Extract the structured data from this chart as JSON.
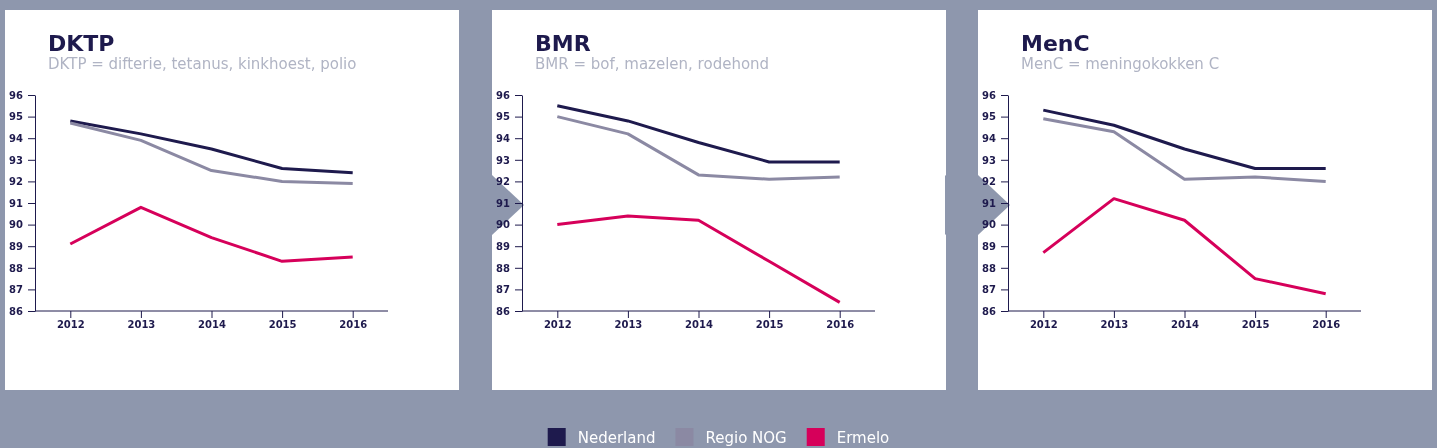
{
  "chart_data": [
    {
      "type": "line",
      "title": "DKTP",
      "subtitle": "DKTP = difterie, tetanus, kinkhoest, polio",
      "categories": [
        "2012",
        "2013",
        "2014",
        "2015",
        "2016"
      ],
      "ylim": [
        86,
        96
      ],
      "yticks": [
        86,
        87,
        88,
        89,
        90,
        91,
        92,
        93,
        94,
        95,
        96
      ],
      "grid": false,
      "legend": "bottom",
      "marker": "none",
      "series": [
        {
          "name": "Nederland",
          "color": "#1e1a4d",
          "values": [
            94.8,
            94.2,
            93.5,
            92.6,
            92.4
          ]
        },
        {
          "name": "Regio NOG",
          "color": "#8b89a3",
          "values": [
            94.7,
            93.9,
            92.5,
            92.0,
            91.9
          ]
        },
        {
          "name": "Ermelo",
          "color": "#d6005a",
          "values": [
            89.1,
            90.8,
            89.4,
            88.3,
            88.5
          ]
        }
      ]
    },
    {
      "type": "line",
      "title": "BMR",
      "subtitle": "BMR = bof, mazelen, rodehond",
      "categories": [
        "2012",
        "2013",
        "2014",
        "2015",
        "2016"
      ],
      "ylim": [
        86,
        96
      ],
      "yticks": [
        86,
        87,
        88,
        89,
        90,
        91,
        92,
        93,
        94,
        95,
        96
      ],
      "grid": false,
      "marker": "none",
      "series": [
        {
          "color": "#1e1a4d",
          "values": [
            95.5,
            94.8,
            93.8,
            92.9,
            92.9
          ]
        },
        {
          "color": "#8b89a3",
          "values": [
            95.0,
            94.2,
            92.3,
            92.1,
            92.2
          ]
        },
        {
          "color": "#d6005a",
          "values": [
            90.0,
            90.4,
            90.2,
            88.3,
            86.4
          ]
        }
      ]
    },
    {
      "type": "line",
      "title": "MenC",
      "subtitle": "MenC = meningokokken C",
      "categories": [
        "2012",
        "2013",
        "2014",
        "2015",
        "2016"
      ],
      "ylim": [
        86,
        96
      ],
      "yticks": [
        86,
        87,
        88,
        89,
        90,
        91,
        92,
        93,
        94,
        95,
        96
      ],
      "grid": false,
      "marker": "none",
      "series": [
        {
          "color": "#1e1a4d",
          "values": [
            95.3,
            94.6,
            93.5,
            92.6,
            92.6
          ]
        },
        {
          "color": "#8b89a3",
          "values": [
            94.9,
            94.3,
            92.1,
            92.2,
            92.0
          ]
        },
        {
          "color": "#d6005a",
          "values": [
            88.7,
            91.2,
            90.2,
            87.5,
            86.8
          ]
        }
      ]
    }
  ]
}
